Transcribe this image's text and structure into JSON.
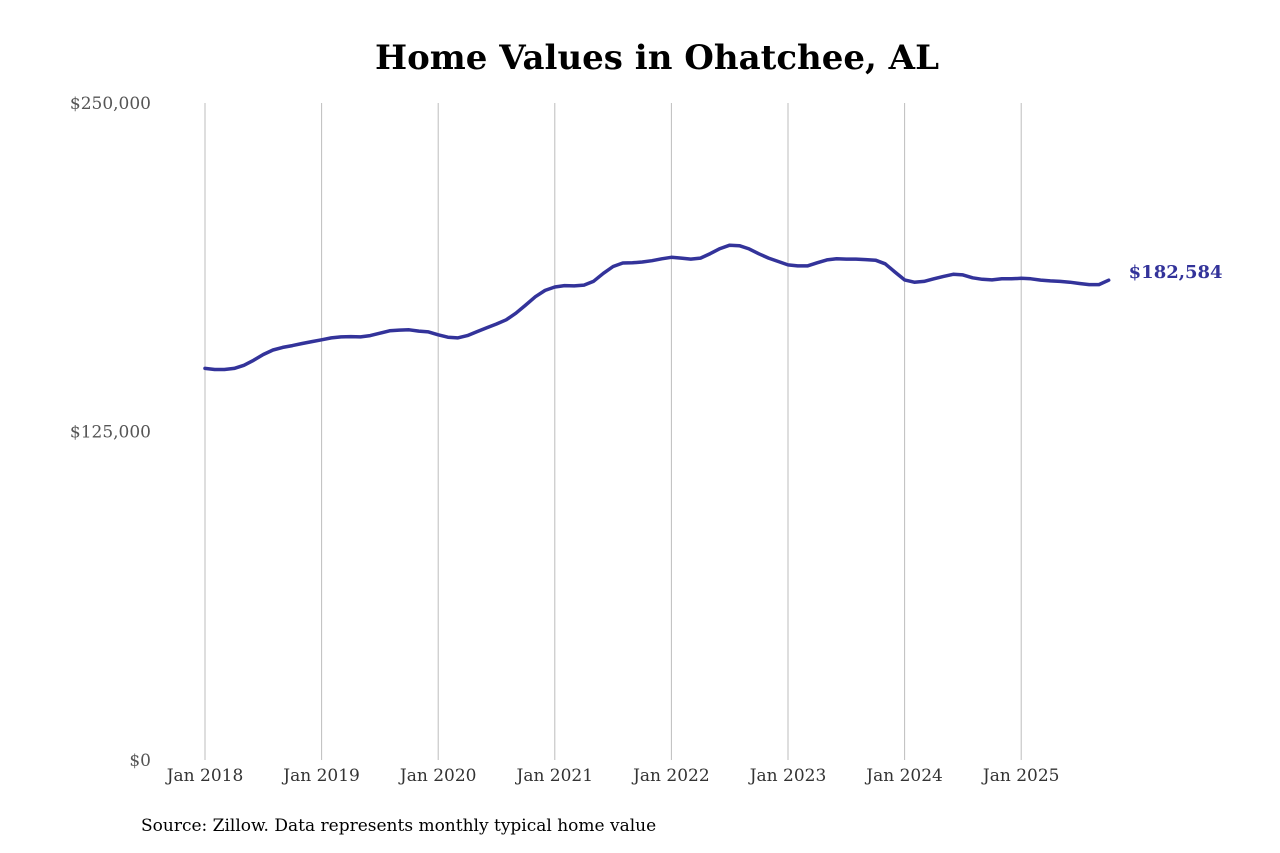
{
  "chart_data": {
    "type": "line",
    "title": "Home Values in Ohatchee, AL",
    "source": "Source: Zillow. Data represents monthly typical home value",
    "y_ticks": [
      {
        "value": 250000,
        "label": "$250,000"
      },
      {
        "value": 125000,
        "label": "$125,000"
      },
      {
        "value": 0,
        "label": "$0"
      }
    ],
    "ylim": [
      0,
      250000
    ],
    "xlim": [
      "2018-01",
      "2025-10"
    ],
    "x_ticks": [
      {
        "date": "2018-01",
        "label": "Jan 2018"
      },
      {
        "date": "2019-01",
        "label": "Jan 2019"
      },
      {
        "date": "2020-01",
        "label": "Jan 2020"
      },
      {
        "date": "2021-01",
        "label": "Jan 2021"
      },
      {
        "date": "2022-01",
        "label": "Jan 2022"
      },
      {
        "date": "2023-01",
        "label": "Jan 2023"
      },
      {
        "date": "2024-01",
        "label": "Jan 2024"
      },
      {
        "date": "2025-01",
        "label": "Jan 2025"
      }
    ],
    "grid": "vertical",
    "line_color": "#33339a",
    "end_label": "$182,584",
    "series": [
      {
        "x": [
          "2018-01",
          "2018-02",
          "2018-03",
          "2018-04",
          "2018-05",
          "2018-06",
          "2018-07",
          "2018-08",
          "2018-09",
          "2018-10",
          "2018-11",
          "2018-12",
          "2019-01",
          "2019-02",
          "2019-03",
          "2019-04",
          "2019-05",
          "2019-06",
          "2019-07",
          "2019-08",
          "2019-09",
          "2019-10",
          "2019-11",
          "2019-12",
          "2020-01",
          "2020-02",
          "2020-03",
          "2020-04",
          "2020-05",
          "2020-06",
          "2020-07",
          "2020-08",
          "2020-09",
          "2020-10",
          "2020-11",
          "2020-12",
          "2021-01",
          "2021-02",
          "2021-03",
          "2021-04",
          "2021-05",
          "2021-06",
          "2021-07",
          "2021-08",
          "2021-09",
          "2021-10",
          "2021-11",
          "2021-12",
          "2022-01",
          "2022-02",
          "2022-03",
          "2022-04",
          "2022-05",
          "2022-06",
          "2022-07",
          "2022-08",
          "2022-09",
          "2022-10",
          "2022-11",
          "2022-12",
          "2023-01",
          "2023-02",
          "2023-03",
          "2023-04",
          "2023-05",
          "2023-06",
          "2023-07",
          "2023-08",
          "2023-09",
          "2023-10",
          "2023-11",
          "2023-12",
          "2024-01",
          "2024-02",
          "2024-03",
          "2024-04",
          "2024-05",
          "2024-06",
          "2024-07",
          "2024-08",
          "2024-09",
          "2024-10",
          "2024-11",
          "2024-12",
          "2025-01",
          "2025-02",
          "2025-03",
          "2025-04",
          "2025-05",
          "2025-06",
          "2025-07",
          "2025-08",
          "2025-09",
          "2025-10"
        ],
        "values": [
          149000,
          148600,
          148600,
          149000,
          150200,
          152100,
          154300,
          156000,
          157000,
          157700,
          158500,
          159200,
          159900,
          160600,
          161000,
          161100,
          161000,
          161500,
          162400,
          163300,
          163600,
          163700,
          163200,
          162900,
          161800,
          160900,
          160600,
          161500,
          163000,
          164500,
          165900,
          167500,
          170000,
          173100,
          176300,
          178700,
          180000,
          180500,
          180400,
          180700,
          182200,
          185200,
          187800,
          189100,
          189200,
          189500,
          190000,
          190700,
          191300,
          191000,
          190600,
          191000,
          192700,
          194600,
          195900,
          195700,
          194500,
          192600,
          191000,
          189700,
          188400,
          188000,
          188000,
          189200,
          190300,
          190700,
          190600,
          190600,
          190400,
          190200,
          188800,
          185700,
          182700,
          181800,
          182100,
          183100,
          184000,
          184800,
          184600,
          183500,
          182900,
          182700,
          183100,
          183100,
          183300,
          183100,
          182600,
          182300,
          182100,
          181800,
          181300,
          180900,
          180900,
          182584
        ]
      }
    ]
  }
}
